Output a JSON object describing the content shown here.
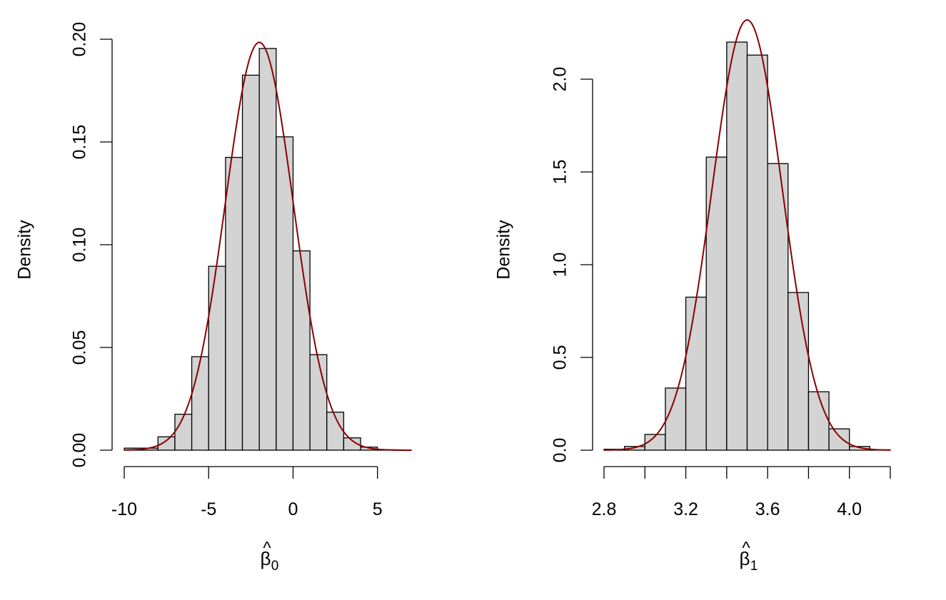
{
  "colors": {
    "bar_fill": "#d3d3d3",
    "bar_stroke": "#000000",
    "curve": "#8b0000",
    "background": "#ffffff"
  },
  "chart_data": [
    {
      "type": "bar",
      "subtype": "histogram with normal density overlay",
      "title": "",
      "xlabel": "β̂0",
      "xlabel_parts": {
        "hat": "^",
        "symbol": "β",
        "subscript": "0"
      },
      "ylabel": "Density",
      "xlim": [
        -10,
        7
      ],
      "ylim": [
        0,
        0.2
      ],
      "xticks": [
        -10,
        -5,
        0,
        5
      ],
      "xtick_labels": [
        "-10",
        "-5",
        "0",
        "5"
      ],
      "yticks": [
        0,
        0.05,
        0.1,
        0.15,
        0.2
      ],
      "ytick_labels": [
        "0.00",
        "0.05",
        "0.10",
        "0.15",
        "0.20"
      ],
      "grid": false,
      "legend": "none",
      "bins": [
        {
          "x0": -10,
          "x1": -9,
          "density": 0.001
        },
        {
          "x0": -9,
          "x1": -8,
          "density": 0.001
        },
        {
          "x0": -8,
          "x1": -7,
          "density": 0.0065
        },
        {
          "x0": -7,
          "x1": -6,
          "density": 0.0175
        },
        {
          "x0": -6,
          "x1": -5,
          "density": 0.0455
        },
        {
          "x0": -5,
          "x1": -4,
          "density": 0.0895
        },
        {
          "x0": -4,
          "x1": -3,
          "density": 0.1425
        },
        {
          "x0": -3,
          "x1": -2,
          "density": 0.1825
        },
        {
          "x0": -2,
          "x1": -1,
          "density": 0.1955
        },
        {
          "x0": -1,
          "x1": 0,
          "density": 0.1525
        },
        {
          "x0": 0,
          "x1": 1,
          "density": 0.097
        },
        {
          "x0": 1,
          "x1": 2,
          "density": 0.0465
        },
        {
          "x0": 2,
          "x1": 3,
          "density": 0.0185
        },
        {
          "x0": 3,
          "x1": 4,
          "density": 0.006
        },
        {
          "x0": 4,
          "x1": 5,
          "density": 0.0015
        },
        {
          "x0": 5,
          "x1": 6,
          "density": 0.0002
        },
        {
          "x0": 6,
          "x1": 7,
          "density": 0.0001
        }
      ],
      "curve": {
        "type": "normal density",
        "mean": -2.0,
        "sd": 2.01,
        "x_range": [
          -10,
          7
        ]
      }
    },
    {
      "type": "bar",
      "subtype": "histogram with normal density overlay",
      "title": "",
      "xlabel": "β̂1",
      "xlabel_parts": {
        "hat": "^",
        "symbol": "β",
        "subscript": "1"
      },
      "ylabel": "Density",
      "xlim": [
        2.8,
        4.2
      ],
      "ylim": [
        0,
        2.25
      ],
      "xticks": [
        2.8,
        3.0,
        3.2,
        3.4,
        3.6,
        3.8,
        4.0,
        4.2
      ],
      "xtick_labels": [
        "2.8",
        "",
        "3.2",
        "",
        "3.6",
        "",
        "4.0",
        ""
      ],
      "yticks": [
        0,
        0.5,
        1.0,
        1.5,
        2.0
      ],
      "ytick_labels": [
        "0.0",
        "0.5",
        "1.0",
        "1.5",
        "2.0"
      ],
      "grid": false,
      "legend": "none",
      "bins": [
        {
          "x0": 2.8,
          "x1": 2.9,
          "density": 0.005
        },
        {
          "x0": 2.9,
          "x1": 3.0,
          "density": 0.02
        },
        {
          "x0": 3.0,
          "x1": 3.1,
          "density": 0.085
        },
        {
          "x0": 3.1,
          "x1": 3.2,
          "density": 0.335
        },
        {
          "x0": 3.2,
          "x1": 3.3,
          "density": 0.825
        },
        {
          "x0": 3.3,
          "x1": 3.4,
          "density": 1.58
        },
        {
          "x0": 3.4,
          "x1": 3.5,
          "density": 2.2
        },
        {
          "x0": 3.5,
          "x1": 3.6,
          "density": 2.13
        },
        {
          "x0": 3.6,
          "x1": 3.7,
          "density": 1.545
        },
        {
          "x0": 3.7,
          "x1": 3.8,
          "density": 0.85
        },
        {
          "x0": 3.8,
          "x1": 3.9,
          "density": 0.315
        },
        {
          "x0": 3.9,
          "x1": 4.0,
          "density": 0.115
        },
        {
          "x0": 4.0,
          "x1": 4.1,
          "density": 0.02
        },
        {
          "x0": 4.1,
          "x1": 4.2,
          "density": 0.002
        }
      ],
      "curve": {
        "type": "normal density",
        "mean": 3.5,
        "sd": 0.172,
        "x_range": [
          2.8,
          4.2
        ]
      }
    }
  ]
}
